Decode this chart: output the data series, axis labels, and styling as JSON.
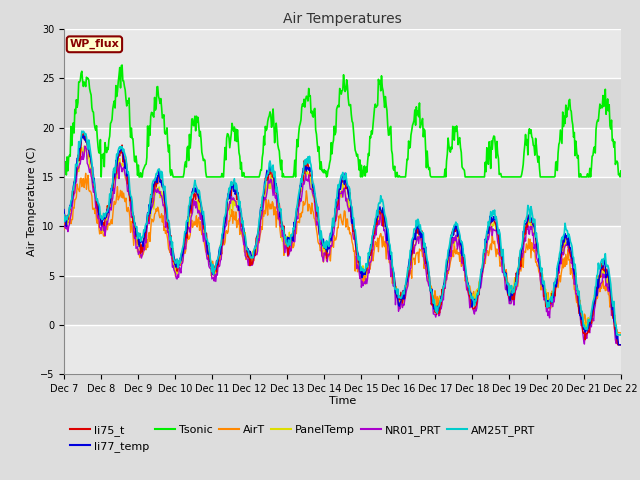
{
  "title": "Air Temperatures",
  "xlabel": "Time",
  "ylabel": "Air Temperature (C)",
  "ylim": [
    -5,
    30
  ],
  "yticks": [
    -5,
    0,
    5,
    10,
    15,
    20,
    25,
    30
  ],
  "n_days": 15,
  "xtick_labels": [
    "Dec 7",
    "Dec 8",
    "Dec 9",
    "Dec 10",
    "Dec 11",
    "Dec 12",
    "Dec 13",
    "Dec 14",
    "Dec 15",
    "Dec 16",
    "Dec 17",
    "Dec 18",
    "Dec 19",
    "Dec 20",
    "Dec 21",
    "Dec 22"
  ],
  "annotation_box": {
    "text": "WP_flux",
    "facecolor": "#ffffcc",
    "edgecolor": "#880000",
    "textcolor": "#880000"
  },
  "background_color": "#dddddd",
  "plot_bg_color": "#e8e8e8",
  "band_colors": [
    "#e8e8e8",
    "#d8d8d8"
  ],
  "grid_color": "#ffffff",
  "series": {
    "li75_t": {
      "color": "#dd0000",
      "lw": 1.0
    },
    "li77_temp": {
      "color": "#0000dd",
      "lw": 1.0
    },
    "Tsonic": {
      "color": "#00ee00",
      "lw": 1.2
    },
    "AirT": {
      "color": "#ff8800",
      "lw": 1.0
    },
    "PanelTemp": {
      "color": "#dddd00",
      "lw": 1.0
    },
    "NR01_PRT": {
      "color": "#aa00cc",
      "lw": 1.0
    },
    "AM25T_PRT": {
      "color": "#00cccc",
      "lw": 1.2
    }
  },
  "legend_ncol": 6,
  "title_fontsize": 10,
  "axis_label_fontsize": 8,
  "tick_fontsize": 7,
  "legend_fontsize": 8
}
